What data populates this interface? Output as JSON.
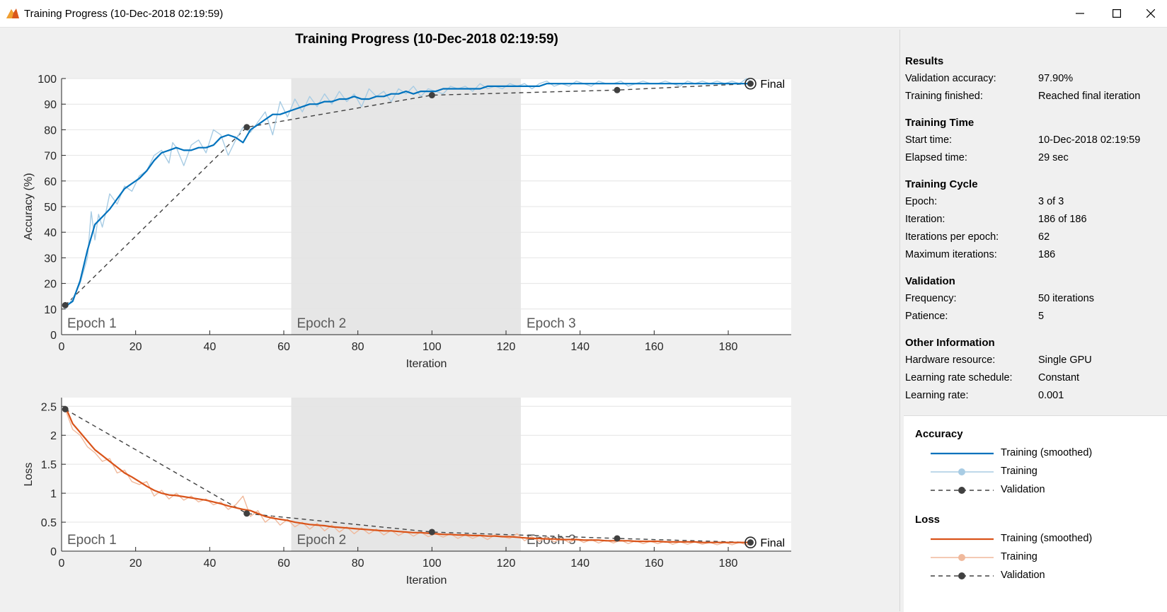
{
  "window": {
    "title": "Training Progress (10-Dec-2018 02:19:59)"
  },
  "figure": {
    "title": "Training Progress (10-Dec-2018 02:19:59)"
  },
  "chart_data": [
    {
      "type": "line",
      "name": "accuracy-plot",
      "xlabel": "Iteration",
      "ylabel": "Accuracy (%)",
      "xlim": [
        0,
        197
      ],
      "ylim": [
        0,
        100
      ],
      "xticks": [
        0,
        20,
        40,
        60,
        80,
        100,
        120,
        140,
        160,
        180
      ],
      "yticks": [
        0,
        10,
        20,
        30,
        40,
        50,
        60,
        70,
        80,
        90,
        100
      ],
      "grid": true,
      "epochs": [
        {
          "label": "Epoch 1",
          "start": 0,
          "end": 62,
          "shaded": false
        },
        {
          "label": "Epoch 2",
          "start": 62,
          "end": 124,
          "shaded": true
        },
        {
          "label": "Epoch 3",
          "start": 124,
          "end": 186,
          "shaded": false
        }
      ],
      "series": [
        {
          "name": "Training (smoothed)",
          "color": "#0072bd",
          "x": [
            1,
            3,
            5,
            7,
            9,
            11,
            13,
            15,
            17,
            19,
            21,
            23,
            25,
            27,
            29,
            31,
            33,
            35,
            37,
            39,
            41,
            43,
            45,
            47,
            49,
            51,
            53,
            55,
            57,
            59,
            61,
            63,
            65,
            67,
            69,
            71,
            73,
            75,
            77,
            79,
            81,
            83,
            85,
            87,
            89,
            91,
            93,
            95,
            97,
            99,
            101,
            103,
            105,
            107,
            109,
            111,
            113,
            115,
            117,
            119,
            121,
            123,
            125,
            127,
            129,
            131,
            133,
            135,
            137,
            139,
            141,
            143,
            145,
            147,
            149,
            151,
            153,
            155,
            157,
            159,
            161,
            163,
            165,
            167,
            169,
            171,
            173,
            175,
            177,
            179,
            181,
            183,
            185,
            186
          ],
          "y": [
            11,
            13,
            21,
            33,
            43,
            46,
            49,
            53,
            57,
            59,
            61,
            64,
            68,
            71,
            72,
            73,
            72,
            72,
            73,
            73,
            74,
            77,
            78,
            77,
            75,
            80,
            82,
            84,
            86,
            86,
            87,
            88,
            89,
            90,
            90,
            91,
            91,
            92,
            92,
            93,
            92,
            92,
            93,
            93,
            94,
            94,
            95,
            94,
            95,
            95,
            95,
            96,
            96,
            96,
            96,
            96,
            96,
            97,
            97,
            97,
            97,
            97,
            97,
            97,
            97,
            98,
            98,
            98,
            98,
            98,
            98,
            98,
            98,
            98,
            98,
            98,
            98,
            98,
            98,
            98,
            98,
            98,
            98,
            98,
            98,
            98,
            98,
            98,
            98,
            98,
            98,
            98,
            98,
            98
          ]
        },
        {
          "name": "Training",
          "color": "#a8cce4",
          "x": [
            1,
            3,
            5,
            7,
            8,
            9,
            10,
            11,
            12,
            13,
            15,
            17,
            19,
            21,
            23,
            25,
            27,
            29,
            30,
            31,
            33,
            35,
            37,
            39,
            41,
            43,
            45,
            47,
            49,
            51,
            53,
            55,
            57,
            59,
            61,
            63,
            65,
            67,
            69,
            71,
            73,
            75,
            77,
            79,
            81,
            83,
            85,
            87,
            89,
            91,
            93,
            95,
            97,
            99,
            101,
            103,
            105,
            107,
            109,
            111,
            113,
            115,
            117,
            119,
            121,
            123,
            125,
            127,
            129,
            131,
            133,
            135,
            137,
            139,
            141,
            143,
            145,
            147,
            149,
            151,
            153,
            155,
            157,
            159,
            161,
            163,
            165,
            167,
            169,
            171,
            173,
            175,
            177,
            179,
            181,
            183,
            185,
            186
          ],
          "y": [
            10,
            14,
            20,
            30,
            48,
            37,
            47,
            42,
            48,
            55,
            51,
            58,
            56,
            62,
            64,
            70,
            72,
            67,
            75,
            73,
            66,
            74,
            76,
            71,
            80,
            78,
            70,
            76,
            81,
            79,
            83,
            87,
            78,
            91,
            85,
            92,
            87,
            93,
            89,
            94,
            90,
            95,
            91,
            94,
            89,
            96,
            93,
            95,
            91,
            96,
            94,
            97,
            93,
            96,
            95,
            94,
            97,
            96,
            97,
            95,
            98,
            96,
            97,
            96,
            98,
            97,
            98,
            96,
            98,
            99,
            97,
            98,
            97,
            99,
            98,
            97,
            99,
            98,
            98,
            99,
            97,
            98,
            99,
            98,
            98,
            99,
            98,
            97,
            99,
            98,
            99,
            98,
            99,
            98,
            99,
            98,
            100,
            99
          ]
        },
        {
          "name": "Validation",
          "color": "#404040",
          "dashed": true,
          "x": [
            1,
            50,
            100,
            150,
            186
          ],
          "y": [
            11.5,
            81,
            93.5,
            95.5,
            98
          ]
        }
      ],
      "final_label": "Final"
    },
    {
      "type": "line",
      "name": "loss-plot",
      "xlabel": "Iteration",
      "ylabel": "Loss",
      "xlim": [
        0,
        197
      ],
      "ylim": [
        0,
        2.65
      ],
      "xticks": [
        0,
        20,
        40,
        60,
        80,
        100,
        120,
        140,
        160,
        180
      ],
      "yticks": [
        0,
        0.5,
        1,
        1.5,
        2,
        2.5
      ],
      "grid": true,
      "epochs": [
        {
          "label": "Epoch 1",
          "start": 0,
          "end": 62,
          "shaded": false
        },
        {
          "label": "Epoch 2",
          "start": 62,
          "end": 124,
          "shaded": true
        },
        {
          "label": "Epoch 3",
          "start": 124,
          "end": 186,
          "shaded": false
        }
      ],
      "series": [
        {
          "name": "Training (smoothed)",
          "color": "#d95319",
          "x": [
            1,
            3,
            5,
            7,
            9,
            11,
            13,
            15,
            17,
            19,
            21,
            23,
            25,
            27,
            29,
            31,
            33,
            35,
            37,
            39,
            41,
            43,
            45,
            47,
            49,
            51,
            53,
            55,
            57,
            59,
            61,
            63,
            65,
            67,
            69,
            71,
            73,
            75,
            77,
            79,
            81,
            83,
            85,
            87,
            89,
            91,
            93,
            95,
            97,
            99,
            101,
            103,
            105,
            107,
            109,
            111,
            113,
            115,
            117,
            119,
            121,
            123,
            125,
            127,
            129,
            131,
            133,
            135,
            137,
            139,
            141,
            143,
            145,
            147,
            149,
            151,
            153,
            155,
            157,
            159,
            161,
            163,
            165,
            167,
            169,
            171,
            173,
            175,
            177,
            179,
            181,
            183,
            185,
            186
          ],
          "y": [
            2.5,
            2.2,
            2.05,
            1.9,
            1.75,
            1.65,
            1.55,
            1.45,
            1.35,
            1.28,
            1.2,
            1.12,
            1.05,
            1.0,
            0.97,
            0.96,
            0.94,
            0.92,
            0.9,
            0.88,
            0.85,
            0.82,
            0.78,
            0.75,
            0.72,
            0.7,
            0.65,
            0.6,
            0.57,
            0.55,
            0.53,
            0.5,
            0.48,
            0.46,
            0.45,
            0.44,
            0.42,
            0.41,
            0.4,
            0.39,
            0.38,
            0.37,
            0.36,
            0.35,
            0.35,
            0.34,
            0.33,
            0.32,
            0.32,
            0.31,
            0.3,
            0.29,
            0.29,
            0.28,
            0.28,
            0.27,
            0.27,
            0.26,
            0.26,
            0.25,
            0.25,
            0.24,
            0.23,
            0.22,
            0.22,
            0.21,
            0.21,
            0.2,
            0.2,
            0.2,
            0.19,
            0.19,
            0.19,
            0.18,
            0.18,
            0.18,
            0.18,
            0.17,
            0.17,
            0.17,
            0.17,
            0.16,
            0.16,
            0.16,
            0.16,
            0.16,
            0.15,
            0.15,
            0.15,
            0.15,
            0.15,
            0.15,
            0.15,
            0.15
          ]
        },
        {
          "name": "Training",
          "color": "#f0b99c",
          "x": [
            1,
            3,
            5,
            7,
            9,
            11,
            13,
            15,
            17,
            19,
            21,
            23,
            25,
            27,
            29,
            31,
            33,
            35,
            37,
            39,
            41,
            43,
            45,
            47,
            49,
            51,
            53,
            55,
            57,
            59,
            61,
            63,
            65,
            67,
            69,
            71,
            73,
            75,
            77,
            79,
            81,
            83,
            85,
            87,
            89,
            91,
            93,
            95,
            97,
            99,
            101,
            103,
            105,
            107,
            109,
            111,
            113,
            115,
            117,
            119,
            121,
            123,
            125,
            127,
            129,
            131,
            133,
            135,
            137,
            139,
            141,
            143,
            145,
            147,
            149,
            151,
            153,
            155,
            157,
            159,
            161,
            163,
            165,
            167,
            169,
            171,
            173,
            175,
            177,
            179,
            181,
            183,
            185,
            186
          ],
          "y": [
            2.45,
            2.1,
            2.0,
            1.8,
            1.7,
            1.55,
            1.6,
            1.35,
            1.4,
            1.2,
            1.15,
            1.2,
            0.95,
            1.05,
            0.9,
            1.0,
            0.88,
            0.95,
            0.85,
            0.9,
            0.8,
            0.85,
            0.72,
            0.8,
            0.95,
            0.6,
            0.7,
            0.5,
            0.6,
            0.45,
            0.55,
            0.42,
            0.5,
            0.38,
            0.48,
            0.35,
            0.45,
            0.33,
            0.42,
            0.3,
            0.4,
            0.3,
            0.38,
            0.28,
            0.36,
            0.27,
            0.34,
            0.26,
            0.33,
            0.25,
            0.3,
            0.24,
            0.3,
            0.22,
            0.28,
            0.22,
            0.27,
            0.2,
            0.28,
            0.25,
            0.22,
            0.3,
            0.18,
            0.25,
            0.17,
            0.24,
            0.16,
            0.22,
            0.15,
            0.21,
            0.15,
            0.2,
            0.14,
            0.19,
            0.14,
            0.19,
            0.13,
            0.18,
            0.13,
            0.17,
            0.13,
            0.17,
            0.12,
            0.16,
            0.12,
            0.16,
            0.12,
            0.15,
            0.11,
            0.15,
            0.11,
            0.15,
            0.11,
            0.12
          ]
        },
        {
          "name": "Validation",
          "color": "#404040",
          "dashed": true,
          "x": [
            1,
            50,
            100,
            150,
            186
          ],
          "y": [
            2.45,
            0.65,
            0.33,
            0.22,
            0.15
          ]
        }
      ],
      "final_label": "Final"
    }
  ],
  "results": {
    "sections": [
      {
        "title": "Results",
        "rows": [
          {
            "label": "Validation accuracy:",
            "value": "97.90%"
          },
          {
            "label": "Training finished:",
            "value": "Reached final iteration"
          }
        ]
      },
      {
        "title": "Training Time",
        "rows": [
          {
            "label": "Start time:",
            "value": "10-Dec-2018 02:19:59"
          },
          {
            "label": "Elapsed time:",
            "value": "29 sec"
          }
        ]
      },
      {
        "title": "Training Cycle",
        "rows": [
          {
            "label": "Epoch:",
            "value": "3 of 3"
          },
          {
            "label": "Iteration:",
            "value": "186 of 186"
          },
          {
            "label": "Iterations per epoch:",
            "value": "62"
          },
          {
            "label": "Maximum iterations:",
            "value": "186"
          }
        ]
      },
      {
        "title": "Validation",
        "rows": [
          {
            "label": "Frequency:",
            "value": "50 iterations"
          },
          {
            "label": "Patience:",
            "value": "5"
          }
        ]
      },
      {
        "title": "Other Information",
        "rows": [
          {
            "label": "Hardware resource:",
            "value": "Single GPU"
          },
          {
            "label": "Learning rate schedule:",
            "value": "Constant"
          },
          {
            "label": "Learning rate:",
            "value": "0.001"
          }
        ]
      }
    ]
  },
  "legend": {
    "groups": [
      {
        "title": "Accuracy",
        "entries": [
          {
            "label": "Training (smoothed)",
            "style": "solid",
            "color": "#0072bd"
          },
          {
            "label": "Training",
            "style": "solid-marker",
            "color": "#a8cce4"
          },
          {
            "label": "Validation",
            "style": "dashed-marker",
            "color": "#404040"
          }
        ]
      },
      {
        "title": "Loss",
        "entries": [
          {
            "label": "Training (smoothed)",
            "style": "solid",
            "color": "#d95319"
          },
          {
            "label": "Training",
            "style": "solid-marker",
            "color": "#f0b99c"
          },
          {
            "label": "Validation",
            "style": "dashed-marker",
            "color": "#404040"
          }
        ]
      }
    ]
  }
}
